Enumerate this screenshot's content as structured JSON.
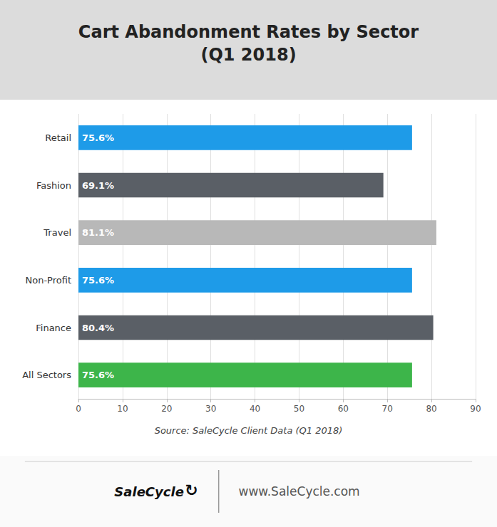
{
  "chart_data": {
    "type": "bar",
    "orientation": "horizontal",
    "title": "Cart Abandonment Rates by Sector",
    "subtitle": "(Q1 2018)",
    "categories": [
      "Retail",
      "Fashion",
      "Travel",
      "Non-Profit",
      "Finance",
      "All Sectors"
    ],
    "values": [
      75.6,
      69.1,
      81.1,
      75.6,
      80.4,
      75.6
    ],
    "value_labels": [
      "75.6%",
      "69.1%",
      "81.1%",
      "75.6%",
      "80.4%",
      "75.6%"
    ],
    "data_labels": true,
    "colors": [
      "#1E9BE8",
      "#5A5F66",
      "#B8B8B8",
      "#1E9BE8",
      "#5A5F66",
      "#3DB54A"
    ],
    "xlim": [
      0,
      90
    ],
    "xticks": [
      0,
      10,
      20,
      30,
      40,
      50,
      60,
      70,
      80,
      90
    ],
    "grid": true,
    "annotations": [
      "Source: SaleCycle Client Data (Q1 2018)",
      "SaleCycle",
      "↻",
      "www.SaleCycle.com"
    ]
  }
}
